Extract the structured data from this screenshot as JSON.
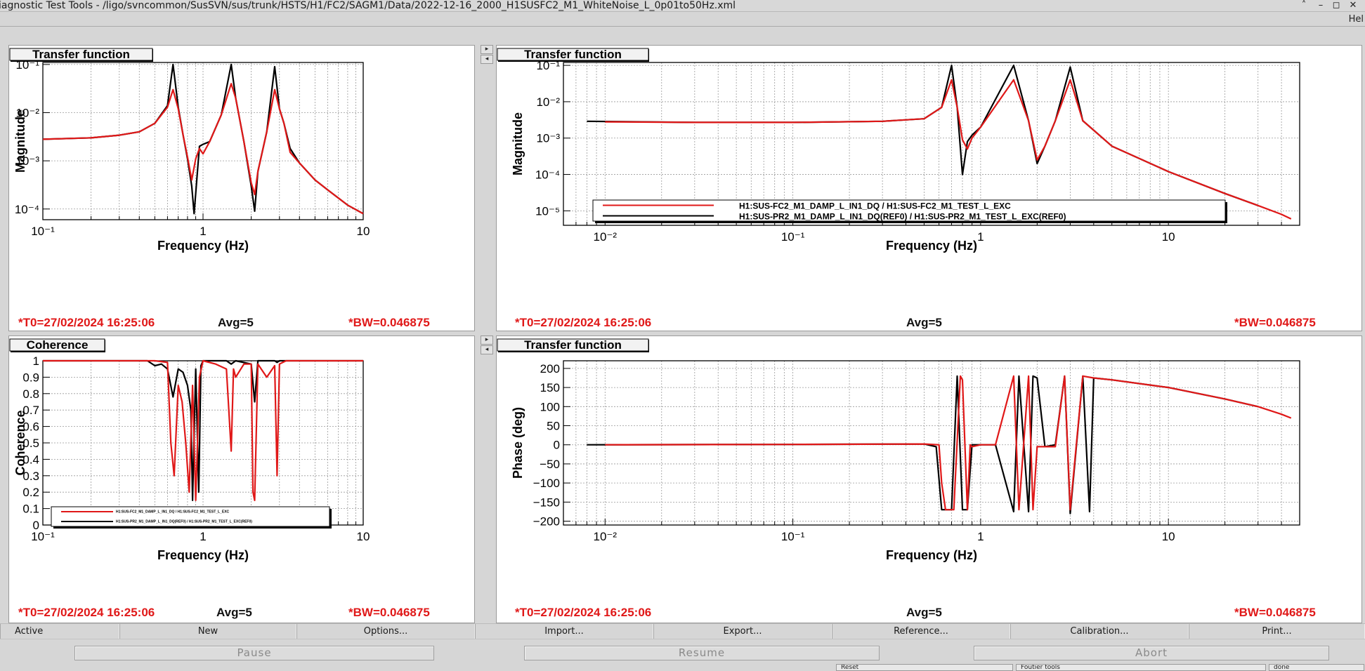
{
  "window": {
    "title": "iagnostic Test Tools - /ligo/svncommon/SusSVN/sus/trunk/HSTS/H1/FC2/SAGM1/Data/2022-12-16_2000_H1SUSFC2_M1_WhiteNoise_L_0p01to50Hz.xml",
    "help_menu": "Hel"
  },
  "pads": [
    {
      "heading": "Transfer function",
      "ylabel": "Magnitude",
      "xlabel": "Frequency (Hz)",
      "xticks": [
        "10⁻¹",
        "1",
        "10"
      ],
      "yticks": [
        "10⁻¹",
        "10⁻²",
        "10⁻³",
        "10⁻⁴"
      ],
      "status": {
        "t0": "*T0=27/02/2024 16:25:06",
        "avg": "Avg=5",
        "bw": "*BW=0.046875"
      }
    },
    {
      "heading": "Transfer function",
      "ylabel": "Magnitude",
      "xlabel": "Frequency (Hz)",
      "xticks": [
        "10⁻²",
        "10⁻¹",
        "1",
        "10"
      ],
      "yticks": [
        "10⁻¹",
        "10⁻²",
        "10⁻³",
        "10⁻⁴",
        "10⁻⁵"
      ],
      "legend": [
        "H1:SUS-FC2_M1_DAMP_L_IN1_DQ / H1:SUS-FC2_M1_TEST_L_EXC",
        "H1:SUS-PR2_M1_DAMP_L_IN1_DQ(REF0) / H1:SUS-PR2_M1_TEST_L_EXC(REF0)"
      ],
      "status": {
        "t0": "*T0=27/02/2024 16:25:06",
        "avg": "Avg=5",
        "bw": "*BW=0.046875"
      }
    },
    {
      "heading": "Coherence",
      "ylabel": "Coherence",
      "xlabel": "Frequency (Hz)",
      "xticks": [
        "10⁻¹",
        "1",
        "10"
      ],
      "yticks": [
        "1",
        "0.9",
        "0.8",
        "0.7",
        "0.6",
        "0.5",
        "0.4",
        "0.3",
        "0.2",
        "0.1",
        "0"
      ],
      "legend": [
        "H1:SUS-FC2_M1_DAMP_L_IN1_DQ / H1:SUS-FC2_M1_TEST_L_EXC",
        "H1:SUS-PR2_M1_DAMP_L_IN1_DQ(REF0) / H1:SUS-PR2_M1_TEST_L_EXC(REF0)"
      ],
      "status": {
        "t0": "*T0=27/02/2024 16:25:06",
        "avg": "Avg=5",
        "bw": "*BW=0.046875"
      }
    },
    {
      "heading": "Transfer function",
      "ylabel": "Phase (deg)",
      "xlabel": "Frequency (Hz)",
      "xticks": [
        "10⁻²",
        "10⁻¹",
        "1",
        "10"
      ],
      "yticks": [
        "200",
        "150",
        "100",
        "50",
        "0",
        "−50",
        "−100",
        "−150",
        "−200"
      ],
      "status": {
        "t0": "*T0=27/02/2024 16:25:06",
        "avg": "Avg=5",
        "bw": "*BW=0.046875"
      }
    }
  ],
  "tabs": [
    "Active",
    "New",
    "Options...",
    "Import...",
    "Export...",
    "Reference...",
    "Calibration...",
    "Print..."
  ],
  "controls": [
    "Pause",
    "Resume",
    "Abort"
  ],
  "bottom_row": [
    "Reset",
    "Foutier tools",
    "done"
  ],
  "colors": {
    "current": "#e01818",
    "reference": "#000000"
  },
  "chart_data": [
    {
      "type": "line",
      "title": "Transfer function",
      "xlabel": "Frequency (Hz)",
      "ylabel": "Magnitude",
      "xscale": "log",
      "yscale": "log",
      "xlim": [
        0.1,
        10
      ],
      "ylim": [
        6e-05,
        0.11
      ],
      "grid": true,
      "series": [
        {
          "name": "H1:SUS-FC2_M1_DAMP_L_IN1_DQ / H1:SUS-FC2_M1_TEST_L_EXC",
          "color": "#e01818",
          "x": [
            0.1,
            0.2,
            0.3,
            0.4,
            0.5,
            0.6,
            0.65,
            0.7,
            0.75,
            0.8,
            0.85,
            0.9,
            0.95,
            1.0,
            1.1,
            1.3,
            1.5,
            1.6,
            1.8,
            2.0,
            2.1,
            2.2,
            2.5,
            2.8,
            3.0,
            3.2,
            3.5,
            4,
            5,
            6,
            8,
            10
          ],
          "y": [
            0.0028,
            0.003,
            0.0034,
            0.004,
            0.006,
            0.013,
            0.03,
            0.012,
            0.0035,
            0.0012,
            0.0004,
            0.0011,
            0.0018,
            0.0014,
            0.0025,
            0.009,
            0.04,
            0.02,
            0.0025,
            0.00035,
            0.0002,
            0.0006,
            0.004,
            0.03,
            0.012,
            0.006,
            0.0015,
            0.0009,
            0.0004,
            0.00025,
            0.00012,
            8e-05
          ]
        },
        {
          "name": "H1:SUS-PR2_M1_DAMP_L_IN1_DQ(REF0) / H1:SUS-PR2_M1_TEST_L_EXC(REF0)",
          "color": "#000000",
          "x": [
            0.1,
            0.2,
            0.3,
            0.4,
            0.5,
            0.6,
            0.65,
            0.7,
            0.75,
            0.8,
            0.85,
            0.88,
            0.95,
            1.0,
            1.1,
            1.3,
            1.5,
            1.6,
            1.8,
            2.0,
            2.1,
            2.2,
            2.5,
            2.8,
            3.0,
            3.2,
            3.5,
            4,
            5,
            6,
            8,
            10
          ],
          "y": [
            0.0028,
            0.003,
            0.0034,
            0.004,
            0.006,
            0.014,
            0.1,
            0.013,
            0.0035,
            0.0011,
            0.0003,
            8e-05,
            0.002,
            0.0022,
            0.0025,
            0.009,
            0.1,
            0.02,
            0.0025,
            0.0003,
            9e-05,
            0.0006,
            0.004,
            0.09,
            0.012,
            0.006,
            0.0018,
            0.0009,
            0.0004,
            0.00025,
            0.00012,
            8e-05
          ]
        }
      ]
    },
    {
      "type": "line",
      "title": "Transfer function",
      "xlabel": "Frequency (Hz)",
      "ylabel": "Magnitude",
      "xscale": "log",
      "yscale": "log",
      "xlim": [
        0.006,
        50
      ],
      "ylim": [
        4e-06,
        0.12
      ],
      "grid": true,
      "legend": "bottom",
      "series": [
        {
          "name": "H1:SUS-FC2_M1_DAMP_L_IN1_DQ / H1:SUS-FC2_M1_TEST_L_EXC",
          "color": "#e01818",
          "x": [
            0.01,
            0.03,
            0.1,
            0.3,
            0.5,
            0.62,
            0.7,
            0.75,
            0.8,
            0.85,
            0.9,
            1.0,
            1.5,
            1.8,
            2.0,
            2.2,
            2.5,
            3.0,
            3.5,
            5,
            10,
            20,
            30,
            40,
            45
          ],
          "y": [
            0.0028,
            0.0027,
            0.0027,
            0.0029,
            0.0034,
            0.007,
            0.04,
            0.007,
            0.0009,
            0.0005,
            0.001,
            0.002,
            0.04,
            0.003,
            0.00025,
            0.0006,
            0.003,
            0.04,
            0.003,
            0.0006,
            0.00012,
            3e-05,
            1.4e-05,
            8e-06,
            6e-06
          ]
        },
        {
          "name": "H1:SUS-PR2_M1_DAMP_L_IN1_DQ(REF0) / H1:SUS-PR2_M1_TEST_L_EXC(REF0)",
          "color": "#000000",
          "x": [
            0.008,
            0.03,
            0.1,
            0.3,
            0.5,
            0.62,
            0.7,
            0.75,
            0.8,
            0.85,
            0.9,
            1.0,
            1.5,
            1.8,
            2.0,
            2.2,
            2.5,
            3.0,
            3.5,
            5,
            10,
            20,
            30
          ],
          "y": [
            0.0029,
            0.0027,
            0.0027,
            0.0029,
            0.0034,
            0.007,
            0.1,
            0.007,
            0.0001,
            0.0008,
            0.0012,
            0.002,
            0.1,
            0.003,
            0.0002,
            0.0006,
            0.003,
            0.09,
            0.003,
            0.0006,
            0.00012,
            3e-05,
            1.4e-05
          ]
        }
      ]
    },
    {
      "type": "line",
      "title": "Coherence",
      "xlabel": "Frequency (Hz)",
      "ylabel": "Coherence",
      "xscale": "log",
      "xlim": [
        0.1,
        10
      ],
      "ylim": [
        0,
        1
      ],
      "grid": true,
      "legend": "bottom-left",
      "series": [
        {
          "name": "H1:SUS-FC2_M1_DAMP_L_IN1_DQ / H1:SUS-FC2_M1_TEST_L_EXC",
          "color": "#e01818",
          "x": [
            0.1,
            0.5,
            0.6,
            0.63,
            0.66,
            0.7,
            0.74,
            0.78,
            0.82,
            0.86,
            0.9,
            0.95,
            1.0,
            1.2,
            1.4,
            1.5,
            1.55,
            1.6,
            1.8,
            2.0,
            2.05,
            2.1,
            2.2,
            2.5,
            2.8,
            2.9,
            3.0,
            3.3,
            4,
            10
          ],
          "y": [
            1,
            1,
            0.99,
            0.5,
            0.3,
            0.85,
            0.75,
            0.5,
            0.2,
            0.85,
            0.15,
            0.9,
            1,
            0.98,
            0.95,
            0.45,
            0.95,
            0.9,
            0.98,
            0.98,
            0.2,
            0.15,
            0.98,
            0.9,
            0.97,
            0.3,
            0.98,
            1,
            1,
            1
          ]
        },
        {
          "name": "H1:SUS-PR2_M1_DAMP_L_IN1_DQ(REF0) / H1:SUS-PR2_M1_TEST_L_EXC(REF0)",
          "color": "#000000",
          "x": [
            0.1,
            0.45,
            0.5,
            0.55,
            0.6,
            0.65,
            0.7,
            0.75,
            0.8,
            0.84,
            0.86,
            0.9,
            0.94,
            0.97,
            1.0,
            1.1,
            1.4,
            1.5,
            1.6,
            2.0,
            2.1,
            2.2,
            2.8,
            2.9,
            3.0,
            4,
            10
          ],
          "y": [
            1,
            1,
            0.97,
            0.98,
            0.95,
            0.78,
            0.95,
            0.93,
            0.85,
            0.7,
            0.15,
            0.95,
            0.2,
            0.97,
            1,
            1,
            1,
            0.98,
            1,
            0.98,
            0.75,
            1,
            1,
            0.99,
            1,
            1,
            1
          ]
        }
      ]
    },
    {
      "type": "line",
      "title": "Transfer function",
      "xlabel": "Frequency (Hz)",
      "ylabel": "Phase (deg)",
      "xscale": "log",
      "xlim": [
        0.006,
        50
      ],
      "ylim": [
        -210,
        220
      ],
      "grid": true,
      "series": [
        {
          "name": "H1:SUS-FC2_M1_DAMP_L_IN1_DQ / H1:SUS-FC2_M1_TEST_L_EXC",
          "color": "#e01818",
          "x": [
            0.01,
            0.1,
            0.5,
            0.6,
            0.62,
            0.65,
            0.68,
            0.7,
            0.72,
            0.78,
            0.8,
            0.85,
            0.88,
            0.9,
            1.0,
            1.2,
            1.5,
            1.6,
            1.8,
            1.9,
            2.0,
            2.2,
            2.5,
            2.8,
            3.0,
            3.5,
            4,
            5,
            10,
            20,
            30,
            40,
            45
          ],
          "y": [
            0,
            1,
            2,
            0,
            -100,
            -170,
            -170,
            -170,
            -170,
            180,
            170,
            -170,
            0,
            -5,
            0,
            0,
            180,
            -170,
            180,
            -170,
            -5,
            -5,
            -5,
            180,
            -170,
            180,
            175,
            170,
            150,
            120,
            100,
            80,
            70
          ]
        },
        {
          "name": "H1:SUS-PR2_M1_DAMP_L_IN1_DQ(REF0) / H1:SUS-PR2_M1_TEST_L_EXC(REF0)",
          "color": "#000000",
          "x": [
            0.008,
            0.1,
            0.5,
            0.58,
            0.62,
            0.66,
            0.7,
            0.75,
            0.8,
            0.85,
            0.9,
            1.0,
            1.2,
            1.5,
            1.6,
            1.8,
            1.9,
            2.0,
            2.2,
            2.5,
            2.8,
            3.0,
            3.5,
            3.8,
            4,
            5,
            10,
            20,
            30
          ],
          "y": [
            0,
            1,
            2,
            -5,
            -170,
            -170,
            -170,
            180,
            -170,
            -170,
            0,
            0,
            0,
            -175,
            180,
            -175,
            180,
            175,
            -5,
            0,
            180,
            -180,
            180,
            -175,
            175,
            170,
            150,
            120,
            100
          ]
        }
      ]
    }
  ]
}
